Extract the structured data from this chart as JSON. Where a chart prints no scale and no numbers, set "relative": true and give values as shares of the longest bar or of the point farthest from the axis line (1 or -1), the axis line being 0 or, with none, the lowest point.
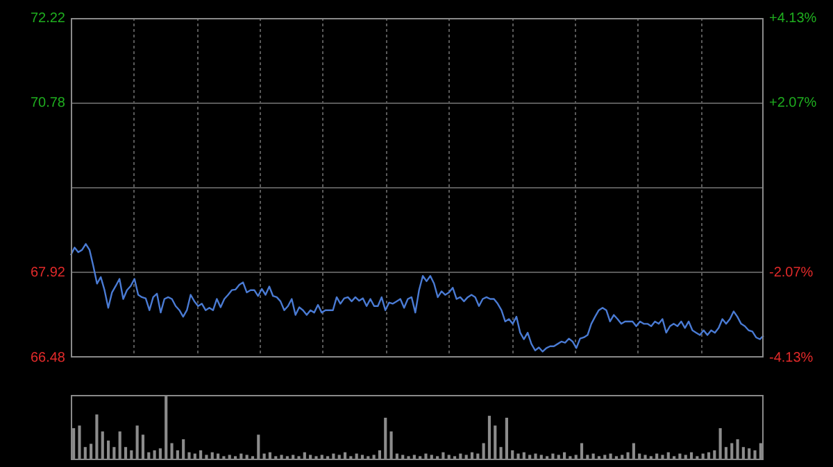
{
  "chart_data": [
    {
      "type": "line",
      "categories": [
        null,
        null,
        null,
        null,
        null,
        null,
        null,
        null,
        null,
        null,
        null,
        null,
        null,
        null,
        null,
        null,
        null,
        null,
        null,
        null,
        null,
        null,
        null,
        null,
        null,
        null,
        null,
        null,
        null,
        null,
        null,
        null,
        null,
        null,
        null,
        null,
        null,
        null,
        null,
        null,
        null,
        null,
        null,
        null,
        null,
        null,
        null,
        null,
        null,
        null,
        null,
        null,
        null,
        null,
        null,
        null,
        null,
        null,
        null,
        null,
        null,
        null,
        null,
        null,
        null,
        null,
        null,
        null,
        null,
        null,
        null,
        null,
        null,
        null,
        null,
        null,
        null,
        null,
        null,
        null,
        null,
        null,
        null,
        null,
        null,
        null,
        null,
        null,
        null,
        null,
        null,
        null,
        null,
        null,
        null,
        null,
        null,
        null,
        null,
        null,
        null,
        null,
        null,
        null,
        null,
        null,
        null,
        null,
        null,
        null,
        null,
        null,
        null,
        null,
        null,
        null,
        null,
        null,
        null,
        null,
        null,
        null,
        null,
        null,
        null,
        null,
        null,
        null,
        null,
        null,
        null,
        null,
        null,
        null,
        null,
        null,
        null,
        null,
        null,
        null,
        null,
        null,
        null,
        null,
        null,
        null,
        null,
        null,
        null,
        null,
        null,
        null,
        null,
        null,
        null,
        null,
        null,
        null,
        null,
        null,
        null,
        null,
        null,
        null,
        null,
        null,
        null,
        null,
        null,
        null,
        null,
        null,
        null,
        null,
        null,
        null,
        null,
        null,
        null,
        null,
        null,
        null,
        null,
        null,
        null,
        null
      ],
      "series": [
        {
          "color": "#4a7bd4",
          "values": [
            68.21,
            68.34,
            68.26,
            68.3,
            68.4,
            68.3,
            68.03,
            67.73,
            67.84,
            67.62,
            67.32,
            67.58,
            67.69,
            67.81,
            67.47,
            67.62,
            67.69,
            67.81,
            67.54,
            67.5,
            67.48,
            67.28,
            67.5,
            67.56,
            67.24,
            67.47,
            67.5,
            67.47,
            67.35,
            67.28,
            67.17,
            67.28,
            67.54,
            67.43,
            67.35,
            67.39,
            67.28,
            67.32,
            67.28,
            67.47,
            67.33,
            67.47,
            67.54,
            67.62,
            67.63,
            67.71,
            67.75,
            67.58,
            67.62,
            67.62,
            67.52,
            67.64,
            67.54,
            67.68,
            67.52,
            67.5,
            67.43,
            67.28,
            67.35,
            67.47,
            67.2,
            67.33,
            67.28,
            67.2,
            67.28,
            67.24,
            67.37,
            67.24,
            67.28,
            67.28,
            67.28,
            67.5,
            67.39,
            67.48,
            67.5,
            67.43,
            67.5,
            67.44,
            67.48,
            67.35,
            67.47,
            67.35,
            67.35,
            67.5,
            67.28,
            67.41,
            67.39,
            67.43,
            67.47,
            67.32,
            67.47,
            67.5,
            67.24,
            67.62,
            67.86,
            67.77,
            67.86,
            67.73,
            67.5,
            67.6,
            67.54,
            67.58,
            67.66,
            67.47,
            67.5,
            67.43,
            67.5,
            67.54,
            67.5,
            67.35,
            67.47,
            67.5,
            67.47,
            67.47,
            67.39,
            67.28,
            67.09,
            67.13,
            67.05,
            67.17,
            66.9,
            66.79,
            66.9,
            66.71,
            66.6,
            66.65,
            66.58,
            66.64,
            66.67,
            66.67,
            66.71,
            66.75,
            66.73,
            66.8,
            66.75,
            66.64,
            66.8,
            66.82,
            66.86,
            67.05,
            67.17,
            67.28,
            67.32,
            67.28,
            67.09,
            67.2,
            67.13,
            67.05,
            67.09,
            67.09,
            67.09,
            67.01,
            67.09,
            67.05,
            67.05,
            67.01,
            67.09,
            67.05,
            67.13,
            66.9,
            67.01,
            67.05,
            67.01,
            67.09,
            66.98,
            67.09,
            66.94,
            66.9,
            66.86,
            66.94,
            66.86,
            66.94,
            66.9,
            66.98,
            67.13,
            67.05,
            67.13,
            67.26,
            67.17,
            67.05,
            67.01,
            66.94,
            66.92,
            66.82,
            66.79,
            66.85
          ]
        }
      ],
      "ylim": [
        66.48,
        72.22
      ],
      "yticks": [
        66.48,
        67.92,
        {
          "value": 69.35,
          "label": null
        },
        70.78,
        72.22
      ],
      "y2lim": [
        -4.13,
        4.13
      ],
      "y2ticks": [
        {
          "value": -4.13,
          "label": "-4.13%"
        },
        {
          "value": -2.07,
          "label": "-2.07%"
        },
        {
          "value": 0,
          "label": null
        },
        {
          "value": 2.07,
          "label": "+2.07%"
        },
        {
          "value": 4.13,
          "label": "+4.13%"
        }
      ],
      "tick_labels": "y",
      "grid": true
    },
    {
      "type": "bar",
      "relative": true,
      "color": "#8c8c8c",
      "categories": [
        null,
        null,
        null,
        null,
        null,
        null,
        null,
        null,
        null,
        null,
        null,
        null,
        null,
        null,
        null,
        null,
        null,
        null,
        null,
        null,
        null,
        null,
        null,
        null,
        null,
        null,
        null,
        null,
        null,
        null,
        null,
        null,
        null,
        null,
        null,
        null,
        null,
        null,
        null,
        null,
        null,
        null,
        null,
        null,
        null,
        null,
        null,
        null,
        null,
        null,
        null,
        null,
        null,
        null,
        null,
        null,
        null,
        null,
        null,
        null,
        null,
        null,
        null,
        null,
        null,
        null,
        null,
        null,
        null,
        null,
        null,
        null,
        null,
        null,
        null,
        null,
        null,
        null,
        null,
        null,
        null,
        null,
        null,
        null,
        null,
        null,
        null,
        null,
        null,
        null,
        null,
        null,
        null,
        null,
        null,
        null,
        null,
        null,
        null,
        null,
        null,
        null,
        null,
        null,
        null,
        null,
        null,
        null,
        null,
        null,
        null,
        null,
        null,
        null,
        null,
        null,
        null,
        null,
        null,
        null
      ],
      "values": [
        0.49,
        0.53,
        0.2,
        0.25,
        0.7,
        0.44,
        0.3,
        0.2,
        0.44,
        0.2,
        0.15,
        0.53,
        0.39,
        0.12,
        0.15,
        0.18,
        1,
        0.26,
        0.15,
        0.32,
        0.12,
        0.1,
        0.15,
        0.08,
        0.12,
        0.1,
        0.06,
        0.08,
        0.06,
        0.1,
        0.08,
        0.06,
        0.39,
        0.1,
        0.12,
        0.06,
        0.08,
        0.06,
        0.08,
        0.06,
        0.12,
        0.08,
        0.06,
        0.08,
        0.06,
        0.1,
        0.08,
        0.12,
        0.06,
        0.1,
        0.08,
        0.06,
        0.08,
        0.15,
        0.65,
        0.44,
        0.1,
        0.08,
        0.06,
        0.08,
        0.06,
        0.1,
        0.08,
        0.06,
        0.12,
        0.08,
        0.06,
        0.1,
        0.08,
        0.12,
        0.1,
        0.26,
        0.68,
        0.53,
        0.2,
        0.65,
        0.15,
        0.1,
        0.12,
        0.08,
        0.1,
        0.08,
        0.06,
        0.1,
        0.08,
        0.12,
        0.06,
        0.08,
        0.26,
        0.08,
        0.1,
        0.06,
        0.08,
        0.1,
        0.06,
        0.08,
        0.12,
        0.26,
        0.1,
        0.08,
        0.06,
        0.1,
        0.08,
        0.12,
        0.06,
        0.1,
        0.08,
        0.12,
        0.06,
        0.1,
        0.12,
        0.15,
        0.49,
        0.2,
        0.26,
        0.32,
        0.2,
        0.18,
        0.15,
        0.26
      ]
    }
  ]
}
